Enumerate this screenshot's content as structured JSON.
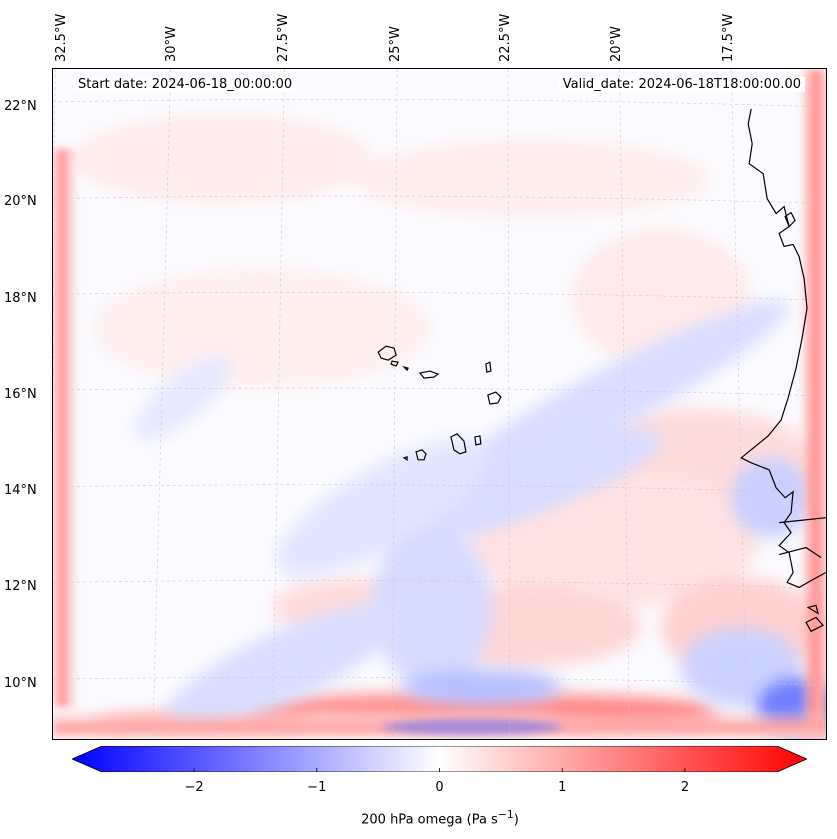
{
  "map": {
    "start_label": "Start date: 2024-06-18_00:00:00",
    "valid_label": "Valid_date: 2024-06-18T18:00:00.00",
    "longitude_labels": [
      "32.5°W",
      "30°W",
      "27.5°W",
      "25°W",
      "22.5°W",
      "20°W",
      "17.5°W"
    ],
    "latitude_labels": [
      "22°N",
      "20°N",
      "18°N",
      "16°N",
      "14°N",
      "12°N",
      "10°N"
    ],
    "field": "200 hPa omega",
    "colors": {
      "negative": "#0000ff",
      "zero": "#ffffff",
      "positive": "#ff0000",
      "coast": "#000000",
      "grid": "#cccccc"
    }
  },
  "colorbar": {
    "min": -2.75,
    "max": 2.75,
    "ticks": [
      "−2",
      "−1",
      "0",
      "1",
      "2"
    ],
    "tick_values": [
      -2,
      -1,
      0,
      1,
      2
    ],
    "label": "200 hPa omega (Pa s",
    "label_exp": "−1",
    "label_end": ")"
  }
}
